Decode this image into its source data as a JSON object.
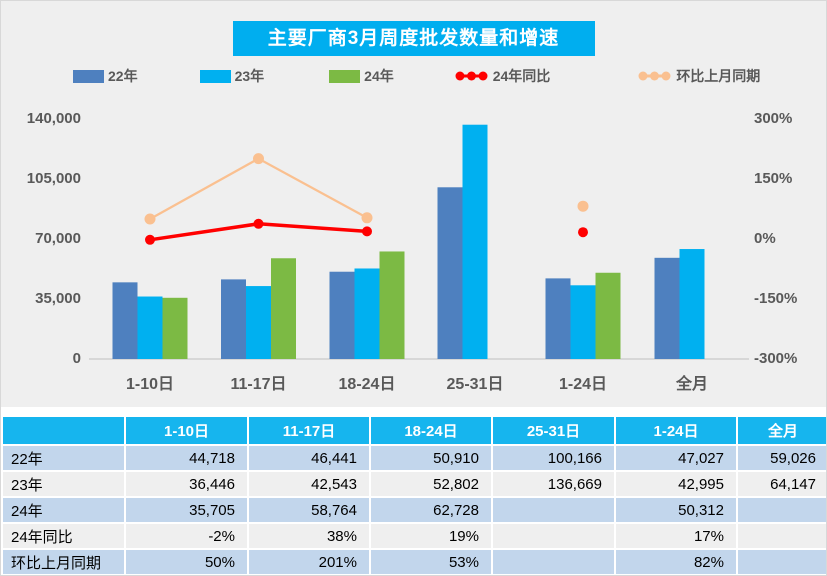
{
  "title": "主要厂商3月周度批发数量和增速",
  "colors": {
    "panel_bg": "#efefef",
    "title_bg": "#00aeef",
    "bar_22": "#4e80bf",
    "bar_23": "#00b0f0",
    "bar_24": "#7cba44",
    "line_yoy": "#ff0000",
    "line_mom": "#fac090",
    "axis_text": "#595959",
    "table_header_bg": "#16b5ee",
    "row_blue": "#c2d6ec",
    "row_gray": "#efefef"
  },
  "legend": [
    {
      "label": "22年",
      "type": "bar",
      "color": "#4e80bf"
    },
    {
      "label": "23年",
      "type": "bar",
      "color": "#00b0f0"
    },
    {
      "label": "24年",
      "type": "bar",
      "color": "#7cba44"
    },
    {
      "label": "24年同比",
      "type": "line",
      "color": "#ff0000"
    },
    {
      "label": "环比上月同期",
      "type": "line",
      "color": "#fac090"
    }
  ],
  "chart_data": {
    "type": "combo-bar-line",
    "title": "主要厂商3月周度批发数量和增速",
    "categories": [
      "1-10日",
      "11-17日",
      "18-24日",
      "25-31日",
      "1-24日",
      "全月"
    ],
    "left_axis": {
      "min": 0,
      "max": 140000,
      "tick_values": [
        0,
        35000,
        70000,
        105000,
        140000
      ],
      "tick_labels": [
        "0",
        "35,000",
        "70,000",
        "105,000",
        "140,000"
      ]
    },
    "right_axis": {
      "min": -300,
      "max": 300,
      "tick_values": [
        -300,
        -150,
        0,
        150,
        300
      ],
      "tick_labels": [
        "-300%",
        "-150%",
        "0%",
        "150%",
        "300%"
      ]
    },
    "grid": false,
    "legend_position": "top",
    "series": [
      {
        "name": "22年",
        "type": "bar",
        "axis": "left",
        "color": "#4e80bf",
        "values": [
          44718,
          46441,
          50910,
          100166,
          47027,
          59026
        ]
      },
      {
        "name": "23年",
        "type": "bar",
        "axis": "left",
        "color": "#00b0f0",
        "values": [
          36446,
          42543,
          52802,
          136669,
          42995,
          64147
        ]
      },
      {
        "name": "24年",
        "type": "bar",
        "axis": "left",
        "color": "#7cba44",
        "values": [
          35705,
          58764,
          62728,
          null,
          50312,
          null
        ]
      },
      {
        "name": "24年同比",
        "type": "line",
        "axis": "right",
        "color": "#ff0000",
        "stroke_width": 3.5,
        "marker_r": 5,
        "values": [
          -2,
          38,
          19,
          null,
          17,
          null
        ]
      },
      {
        "name": "环比上月同期",
        "type": "line",
        "axis": "right",
        "color": "#fac090",
        "stroke_width": 2.25,
        "marker_r": 5.5,
        "values": [
          50,
          201,
          53,
          null,
          82,
          null
        ]
      }
    ]
  },
  "table": {
    "headers": [
      "",
      "1-10日",
      "11-17日",
      "18-24日",
      "25-31日",
      "1-24日",
      "全月"
    ],
    "rows": [
      {
        "label": "22年",
        "cells": [
          "44,718",
          "46,441",
          "50,910",
          "100,166",
          "47,027",
          "59,026"
        ]
      },
      {
        "label": "23年",
        "cells": [
          "36,446",
          "42,543",
          "52,802",
          "136,669",
          "42,995",
          "64,147"
        ]
      },
      {
        "label": "24年",
        "cells": [
          "35,705",
          "58,764",
          "62,728",
          "",
          "50,312",
          ""
        ]
      },
      {
        "label": "24年同比",
        "cells": [
          "-2%",
          "38%",
          "19%",
          "",
          "17%",
          ""
        ]
      },
      {
        "label": "环比上月同期",
        "cells": [
          "50%",
          "201%",
          "53%",
          "",
          "82%",
          ""
        ]
      }
    ]
  }
}
